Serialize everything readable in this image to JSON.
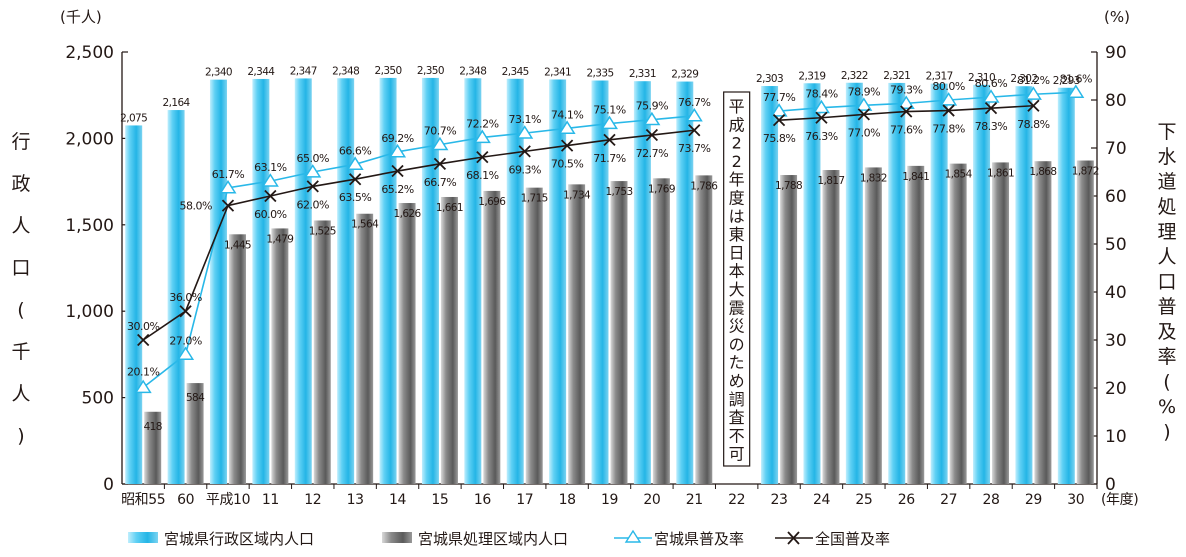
{
  "chart_data": {
    "type": "bar",
    "categories": [
      "昭和55",
      "60",
      "平成10",
      "11",
      "12",
      "13",
      "14",
      "15",
      "16",
      "17",
      "18",
      "19",
      "20",
      "21",
      "22",
      "23",
      "24",
      "25",
      "26",
      "27",
      "28",
      "29",
      "30"
    ],
    "x_unit_label": "(年度)",
    "series": [
      {
        "name": "宮城県行政区域内人口",
        "kind": "bar",
        "axis": "left",
        "values": [
          2075,
          2164,
          2340,
          2344,
          2347,
          2348,
          2350,
          2350,
          2348,
          2345,
          2341,
          2335,
          2331,
          2329,
          null,
          2303,
          2319,
          2322,
          2321,
          2317,
          2310,
          2302,
          2293
        ],
        "labels": [
          "2,075",
          "2,164",
          "2,340",
          "2,344",
          "2,347",
          "2,348",
          "2,350",
          "2,350",
          "2,348",
          "2,345",
          "2,341",
          "2,335",
          "2,331",
          "2,329",
          "",
          "2,303",
          "2,319",
          "2,322",
          "2,321",
          "2,317",
          "2,310",
          "2,302",
          "2,293"
        ]
      },
      {
        "name": "宮城県処理区域内人口",
        "kind": "bar",
        "axis": "left",
        "values": [
          418,
          584,
          1445,
          1479,
          1525,
          1564,
          1626,
          1661,
          1696,
          1715,
          1734,
          1753,
          1769,
          1786,
          null,
          1788,
          1817,
          1832,
          1841,
          1854,
          1861,
          1868,
          1872
        ],
        "labels": [
          "418",
          "584",
          "1,445",
          "1,479",
          "1,525",
          "1,564",
          "1,626",
          "1,661",
          "1,696",
          "1,715",
          "1,734",
          "1,753",
          "1,769",
          "1,786",
          "",
          "1,788",
          "1,817",
          "1,832",
          "1,841",
          "1,854",
          "1,861",
          "1,868",
          "1,872"
        ]
      },
      {
        "name": "宮城県普及率",
        "kind": "line",
        "axis": "right",
        "marker": "triangle",
        "values": [
          20.1,
          27.0,
          61.7,
          63.1,
          65.0,
          66.6,
          69.2,
          70.7,
          72.2,
          73.1,
          74.1,
          75.1,
          75.9,
          76.7,
          null,
          77.7,
          78.4,
          78.9,
          79.3,
          80.0,
          80.6,
          81.2,
          81.6
        ],
        "labels": [
          "20.1%",
          "27.0%",
          "61.7%",
          "63.1%",
          "65.0%",
          "66.6%",
          "69.2%",
          "70.7%",
          "72.2%",
          "73.1%",
          "74.1%",
          "75.1%",
          "75.9%",
          "76.7%",
          "",
          "77.7%",
          "78.4%",
          "78.9%",
          "79.3%",
          "80.0%",
          "80.6%",
          "81.2%",
          "81.6%"
        ]
      },
      {
        "name": "全国普及率",
        "kind": "line",
        "axis": "right",
        "marker": "x",
        "values": [
          30.0,
          36.0,
          58.0,
          60.0,
          62.0,
          63.5,
          65.2,
          66.7,
          68.1,
          69.3,
          70.5,
          71.7,
          72.7,
          73.7,
          null,
          75.8,
          76.3,
          77.0,
          77.6,
          77.8,
          78.3,
          78.8,
          null
        ],
        "labels": [
          "30.0%",
          "36.0%",
          "58.0%",
          "60.0%",
          "62.0%",
          "63.5%",
          "65.2%",
          "66.7%",
          "68.1%",
          "69.3%",
          "70.5%",
          "71.7%",
          "72.7%",
          "73.7%",
          "",
          "75.8%",
          "76.3%",
          "77.0%",
          "77.6%",
          "77.8%",
          "78.3%",
          "78.8%",
          ""
        ]
      }
    ],
    "y_left": {
      "label": "行政人口(千人)",
      "unit": "(千人)",
      "ylim": [
        0,
        2500
      ],
      "ticks": [
        0,
        500,
        1000,
        1500,
        2000,
        2500
      ],
      "tick_labels": [
        "0",
        "500",
        "1,000",
        "1,500",
        "2,000",
        "2,500"
      ]
    },
    "y_right": {
      "label": "下水道処理人口普及率(%)",
      "unit": "(%)",
      "ylim": [
        0,
        90
      ],
      "ticks": [
        0,
        10,
        20,
        30,
        40,
        50,
        60,
        70,
        80,
        90
      ],
      "tick_labels": [
        "0",
        "10",
        "20",
        "30",
        "40",
        "50",
        "60",
        "70",
        "80",
        "90"
      ]
    },
    "note": {
      "category": "22",
      "text": "平成22年度は東日本大震災のため調査不可"
    },
    "colors": {
      "bar_admin": "#29b8e8",
      "bar_processed": "#6d6d6d",
      "line_miyagi": "#29b8e8",
      "line_national": "#231815"
    },
    "grid": false,
    "legend_position": "bottom"
  }
}
